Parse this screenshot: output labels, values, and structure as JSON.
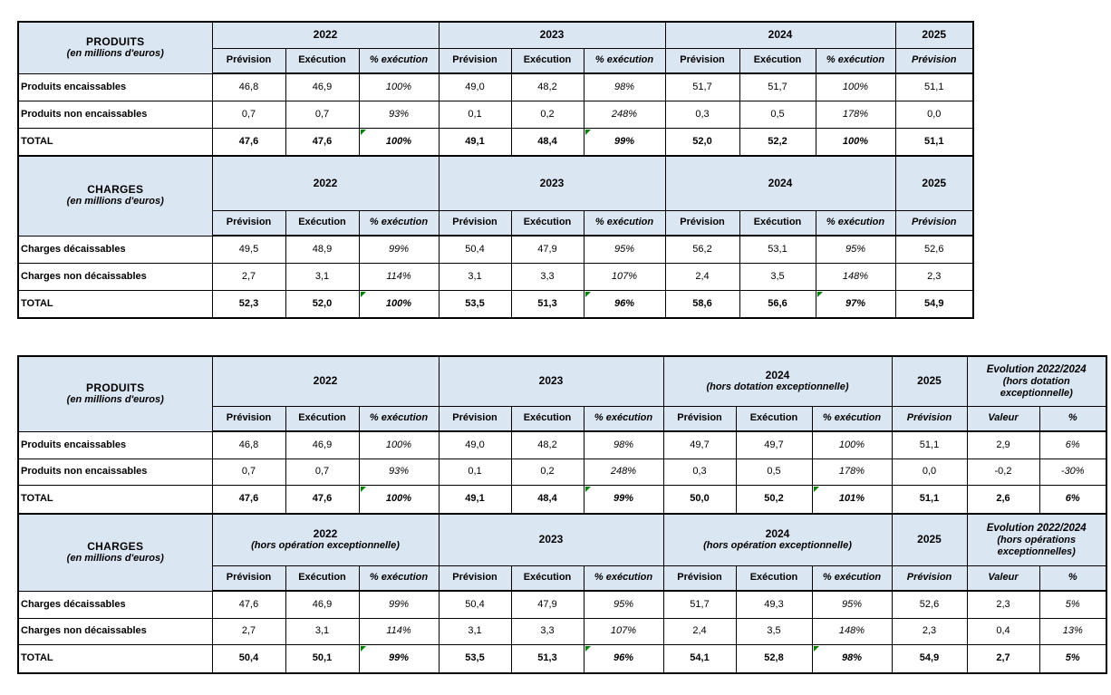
{
  "colors": {
    "header_bg": "#dbe6f3",
    "grid": "#000000",
    "comment_flag_green": "#008000"
  },
  "tables": [
    {
      "sections": [
        {
          "title": "PRODUITS",
          "subtitle": "(en millions d'euros)",
          "groups": [
            {
              "label": "2022",
              "subtitle": "",
              "cols": [
                "Prévision",
                "Exécution",
                "% exécution"
              ]
            },
            {
              "label": "2023",
              "subtitle": "",
              "cols": [
                "Prévision",
                "Exécution",
                "% exécution"
              ]
            },
            {
              "label": "2024",
              "subtitle": "",
              "cols": [
                "Prévision",
                "Exécution",
                "% exécution"
              ]
            },
            {
              "label": "2025",
              "subtitle": "",
              "cols": [
                "Prévision"
              ]
            }
          ],
          "rows": [
            {
              "label": "Produits encaissables",
              "total": false,
              "flags": [],
              "values": [
                "46,8",
                "46,9",
                "100%",
                "49,0",
                "48,2",
                "98%",
                "51,7",
                "51,7",
                "100%",
                "51,1"
              ]
            },
            {
              "label": "Produits non encaissables",
              "total": false,
              "flags": [],
              "values": [
                "0,7",
                "0,7",
                "93%",
                "0,1",
                "0,2",
                "248%",
                "0,3",
                "0,5",
                "178%",
                "0,0"
              ]
            },
            {
              "label": "TOTAL",
              "total": true,
              "flags": [
                2,
                5
              ],
              "values": [
                "47,6",
                "47,6",
                "100%",
                "49,1",
                "48,4",
                "99%",
                "52,0",
                "52,2",
                "100%",
                "51,1"
              ]
            }
          ]
        },
        {
          "title": "CHARGES",
          "subtitle": "(en millions d'euros)",
          "groups": [
            {
              "label": "2022",
              "subtitle": "",
              "cols": [
                "Prévision",
                "Exécution",
                "% exécution"
              ]
            },
            {
              "label": "2023",
              "subtitle": "",
              "cols": [
                "Prévision",
                "Exécution",
                "% exécution"
              ]
            },
            {
              "label": "2024",
              "subtitle": "",
              "cols": [
                "Prévision",
                "Exécution",
                "% exécution"
              ]
            },
            {
              "label": "2025",
              "subtitle": "",
              "cols": [
                "Prévision"
              ]
            }
          ],
          "rows": [
            {
              "label": "Charges décaissables",
              "total": false,
              "flags": [],
              "values": [
                "49,5",
                "48,9",
                "99%",
                "50,4",
                "47,9",
                "95%",
                "56,2",
                "53,1",
                "95%",
                "52,6"
              ]
            },
            {
              "label": "Charges non décaissables",
              "total": false,
              "flags": [],
              "values": [
                "2,7",
                "3,1",
                "114%",
                "3,1",
                "3,3",
                "107%",
                "2,4",
                "3,5",
                "148%",
                "2,3"
              ]
            },
            {
              "label": "TOTAL",
              "total": true,
              "flags": [
                2,
                5,
                8
              ],
              "values": [
                "52,3",
                "52,0",
                "100%",
                "53,5",
                "51,3",
                "96%",
                "58,6",
                "56,6",
                "97%",
                "54,9"
              ]
            }
          ]
        }
      ]
    },
    {
      "sections": [
        {
          "title": "PRODUITS",
          "subtitle": "(en millions d'euros)",
          "groups": [
            {
              "label": "2022",
              "subtitle": "",
              "cols": [
                "Prévision",
                "Exécution",
                "% exécution"
              ]
            },
            {
              "label": "2023",
              "subtitle": "",
              "cols": [
                "Prévision",
                "Exécution",
                "% exécution"
              ]
            },
            {
              "label": "2024",
              "subtitle": "(hors dotation exceptionnelle)",
              "cols": [
                "Prévision",
                "Exécution",
                "% exécution"
              ]
            },
            {
              "label": "2025",
              "subtitle": "",
              "cols": [
                "Prévision"
              ]
            },
            {
              "label": "Evolution 2022/2024",
              "subtitle": "(hors dotation exceptionnelle)",
              "cols": [
                "Valeur",
                "%"
              ]
            }
          ],
          "rows": [
            {
              "label": "Produits encaissables",
              "total": false,
              "flags": [],
              "values": [
                "46,8",
                "46,9",
                "100%",
                "49,0",
                "48,2",
                "98%",
                "49,7",
                "49,7",
                "100%",
                "51,1",
                "2,9",
                "6%"
              ]
            },
            {
              "label": "Produits non encaissables",
              "total": false,
              "flags": [],
              "values": [
                "0,7",
                "0,7",
                "93%",
                "0,1",
                "0,2",
                "248%",
                "0,3",
                "0,5",
                "178%",
                "0,0",
                "-0,2",
                "-30%"
              ]
            },
            {
              "label": "TOTAL",
              "total": true,
              "flags": [
                2,
                5,
                8
              ],
              "values": [
                "47,6",
                "47,6",
                "100%",
                "49,1",
                "48,4",
                "99%",
                "50,0",
                "50,2",
                "101%",
                "51,1",
                "2,6",
                "6%"
              ]
            }
          ]
        },
        {
          "title": "CHARGES",
          "subtitle": "(en millions d'euros)",
          "groups": [
            {
              "label": "2022",
              "subtitle": "(hors opération exceptionnelle)",
              "cols": [
                "Prévision",
                "Exécution",
                "% exécution"
              ]
            },
            {
              "label": "2023",
              "subtitle": "",
              "cols": [
                "Prévision",
                "Exécution",
                "% exécution"
              ]
            },
            {
              "label": "2024",
              "subtitle": "(hors opération exceptionnelle)",
              "cols": [
                "Prévision",
                "Exécution",
                "% exécution"
              ]
            },
            {
              "label": "2025",
              "subtitle": "",
              "cols": [
                "Prévision"
              ]
            },
            {
              "label": "Evolution 2022/2024",
              "subtitle": "(hors opérations exceptionnelles)",
              "cols": [
                "Valeur",
                "%"
              ]
            }
          ],
          "rows": [
            {
              "label": "Charges décaissables",
              "total": false,
              "flags": [],
              "values": [
                "47,6",
                "46,9",
                "99%",
                "50,4",
                "47,9",
                "95%",
                "51,7",
                "49,3",
                "95%",
                "52,6",
                "2,3",
                "5%"
              ]
            },
            {
              "label": "Charges non décaissables",
              "total": false,
              "flags": [],
              "values": [
                "2,7",
                "3,1",
                "114%",
                "3,1",
                "3,3",
                "107%",
                "2,4",
                "3,5",
                "148%",
                "2,3",
                "0,4",
                "13%"
              ]
            },
            {
              "label": "TOTAL",
              "total": true,
              "flags": [
                2,
                5,
                8
              ],
              "values": [
                "50,4",
                "50,1",
                "99%",
                "53,5",
                "51,3",
                "96%",
                "54,1",
                "52,8",
                "98%",
                "54,9",
                "2,7",
                "5%"
              ]
            }
          ]
        }
      ]
    }
  ]
}
